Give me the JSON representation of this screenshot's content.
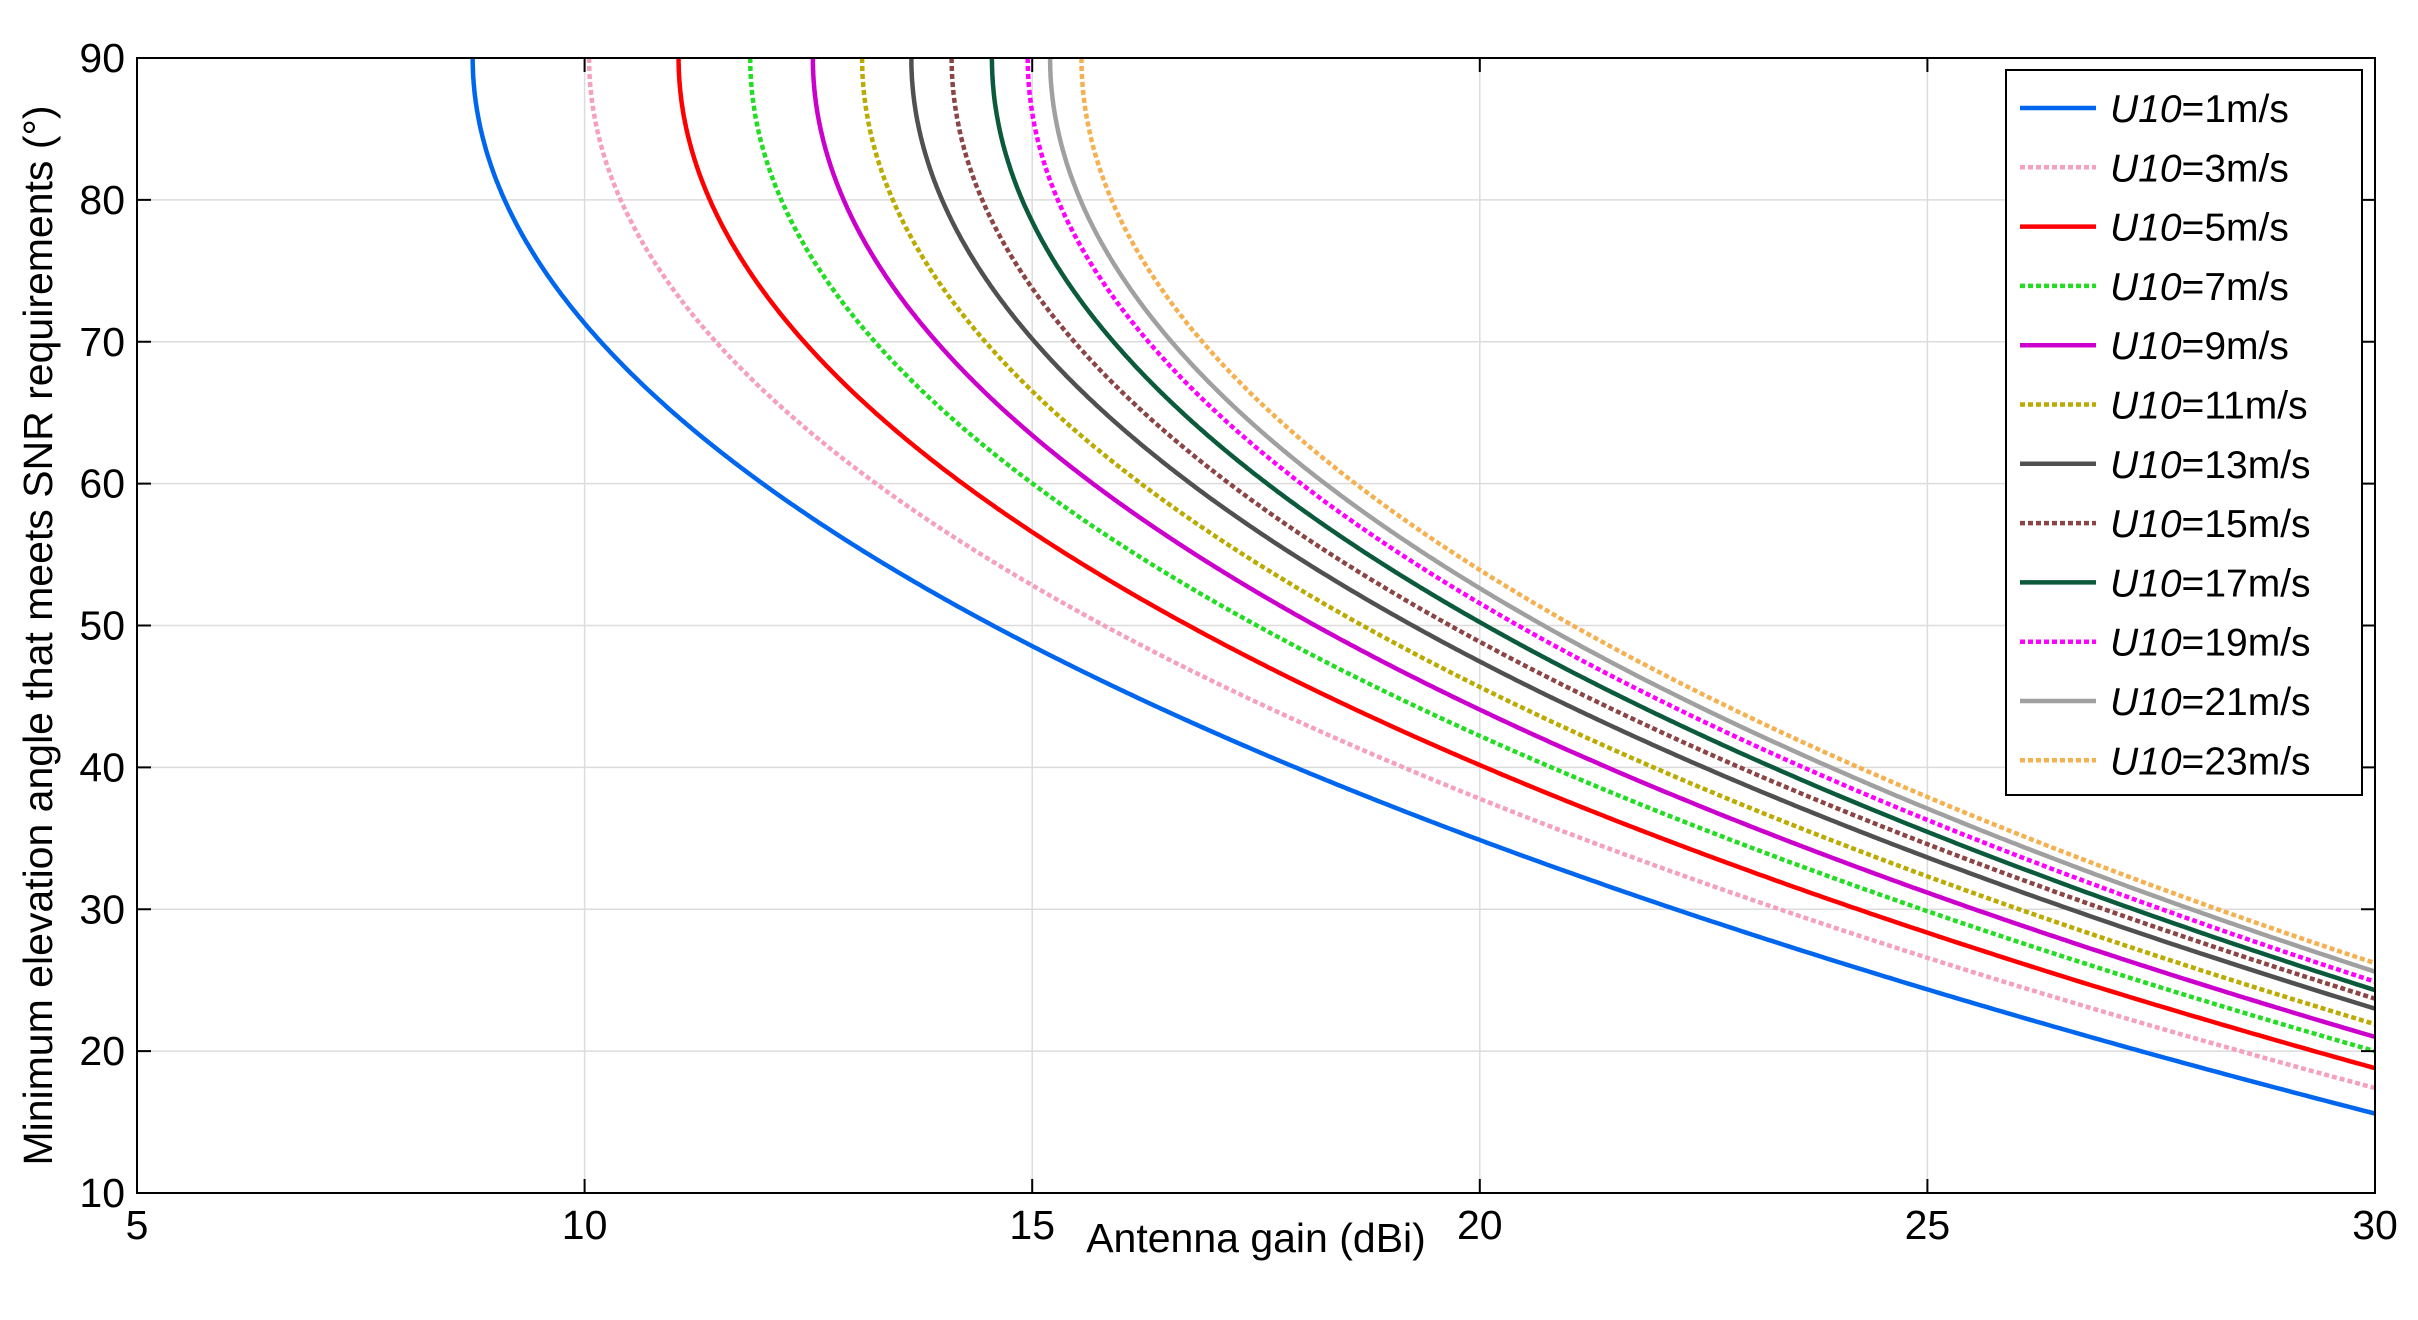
{
  "chart_data": {
    "type": "line",
    "title": "",
    "xlabel": "Antenna gain (dBi)",
    "ylabel": "Minimum elevation angle that meets SNR requirements (°)",
    "xlim": [
      5,
      30
    ],
    "ylim": [
      10,
      90
    ],
    "xticks": [
      5,
      10,
      15,
      20,
      25,
      30
    ],
    "yticks": [
      10,
      20,
      30,
      40,
      50,
      60,
      70,
      80,
      90
    ],
    "grid": true,
    "legend_position": "top-right",
    "series": [
      {
        "name": "U10=1m/s",
        "label_var": "U10",
        "label_value": "=1m/s",
        "onset_gain": 8.75,
        "end_value": 15.6,
        "color": "#0066ee",
        "style": "solid"
      },
      {
        "name": "U10=3m/s",
        "label_var": "U10",
        "label_value": "=3m/s",
        "onset_gain": 10.05,
        "end_value": 17.4,
        "color": "#f5a0bc",
        "style": "dotted"
      },
      {
        "name": "U10=5m/s",
        "label_var": "U10",
        "label_value": "=5m/s",
        "onset_gain": 11.05,
        "end_value": 18.8,
        "color": "#ff0000",
        "style": "solid"
      },
      {
        "name": "U10=7m/s",
        "label_var": "U10",
        "label_value": "=7m/s",
        "onset_gain": 11.85,
        "end_value": 20.0,
        "color": "#22dd22",
        "style": "dotted"
      },
      {
        "name": "U10=9m/s",
        "label_var": "U10",
        "label_value": "=9m/s",
        "onset_gain": 12.55,
        "end_value": 21.0,
        "color": "#cc00cc",
        "style": "solid"
      },
      {
        "name": "U10=11m/s",
        "label_var": "U10",
        "label_value": "=11m/s",
        "onset_gain": 13.1,
        "end_value": 21.9,
        "color": "#bbaa00",
        "style": "dotted"
      },
      {
        "name": "U10=13m/s",
        "label_var": "U10",
        "label_value": "=13m/s",
        "onset_gain": 13.65,
        "end_value": 23.0,
        "color": "#505050",
        "style": "solid"
      },
      {
        "name": "U10=15m/s",
        "label_var": "U10",
        "label_value": "=15m/s",
        "onset_gain": 14.1,
        "end_value": 23.7,
        "color": "#8b4545",
        "style": "dotted"
      },
      {
        "name": "U10=17m/s",
        "label_var": "U10",
        "label_value": "=17m/s",
        "onset_gain": 14.55,
        "end_value": 24.3,
        "color": "#0b5a3c",
        "style": "solid"
      },
      {
        "name": "U10=19m/s",
        "label_var": "U10",
        "label_value": "=19m/s",
        "onset_gain": 14.95,
        "end_value": 24.9,
        "color": "#ff00ff",
        "style": "dotted"
      },
      {
        "name": "U10=21m/s",
        "label_var": "U10",
        "label_value": "=21m/s",
        "onset_gain": 15.2,
        "end_value": 25.6,
        "color": "#a0a0a0",
        "style": "solid"
      },
      {
        "name": "U10=23m/s",
        "label_var": "U10",
        "label_value": "=23m/s",
        "onset_gain": 15.55,
        "end_value": 26.2,
        "color": "#f5b050",
        "style": "dotted"
      }
    ]
  }
}
